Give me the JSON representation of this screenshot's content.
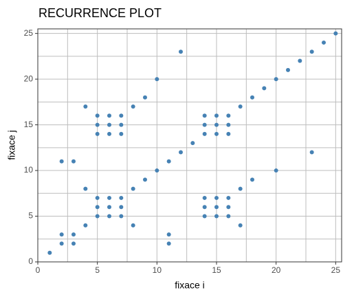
{
  "chart_data": {
    "type": "scatter",
    "title": "RECURRENCE PLOT",
    "x_label": "fixace i",
    "y_label": "fixace j",
    "color": "#4682b4",
    "x": [
      1,
      2,
      2,
      3,
      3,
      4,
      5,
      5,
      5,
      6,
      6,
      6,
      7,
      7,
      7,
      8,
      9,
      10,
      11,
      12,
      13,
      14,
      14,
      14,
      15,
      15,
      15,
      16,
      16,
      16,
      17,
      18,
      19,
      20,
      21,
      22,
      23,
      24,
      25,
      2,
      3,
      4,
      4,
      5,
      5,
      5,
      6,
      6,
      6,
      7,
      7,
      7,
      8,
      8,
      9,
      10,
      11,
      11,
      12,
      14,
      14,
      14,
      15,
      15,
      15,
      16,
      16,
      16,
      17,
      17,
      18,
      20,
      23
    ],
    "values": [
      1,
      2,
      3,
      2,
      3,
      4,
      5,
      6,
      7,
      5,
      6,
      7,
      5,
      6,
      7,
      8,
      9,
      10,
      11,
      12,
      13,
      14,
      15,
      16,
      14,
      15,
      16,
      14,
      15,
      16,
      17,
      18,
      19,
      20,
      21,
      22,
      23,
      24,
      25,
      11,
      11,
      8,
      17,
      14,
      15,
      16,
      14,
      15,
      16,
      14,
      15,
      16,
      17,
      4,
      18,
      20,
      2,
      3,
      23,
      5,
      6,
      7,
      5,
      6,
      7,
      5,
      6,
      7,
      4,
      8,
      9,
      10,
      12
    ],
    "xlim": [
      0,
      25.5
    ],
    "ylim": [
      0,
      25.5
    ],
    "xticks": [
      0,
      5,
      10,
      15,
      20,
      25
    ],
    "yticks": [
      0,
      5,
      10,
      15,
      20,
      25
    ],
    "minor_grid": [
      2.5,
      7.5,
      12.5,
      17.5,
      22.5
    ],
    "grid": true
  }
}
